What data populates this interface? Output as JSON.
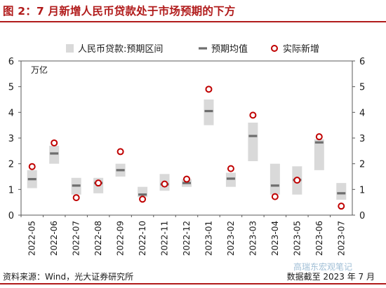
{
  "header": {
    "title": "图 2：7 月新增人民币贷款处于市场预期的下方"
  },
  "footer": {
    "source": "资料来源：Wind，光大证券研究所",
    "date_note": "数据截至 2023 年 7 月",
    "watermark": "高瑞东宏观笔记"
  },
  "colors": {
    "title": "#b11b1b",
    "range_band": "#d9d9d9",
    "mean_marker": "#6e6e6e",
    "actual_marker": "#c00000"
  },
  "chart_data": {
    "type": "range_with_markers",
    "unit_label": "万亿",
    "legend_position": "top",
    "legend": [
      "人民币贷款:预期区间",
      "预期均值",
      "实际新增"
    ],
    "categories": [
      "2022-05",
      "2022-06",
      "2022-07",
      "2022-08",
      "2022-09",
      "2022-10",
      "2022-11",
      "2022-12",
      "2023-01",
      "2023-02",
      "2023-03",
      "2023-04",
      "2023-05",
      "2023-06",
      "2023-07"
    ],
    "y_left": {
      "min": 0,
      "max": 6,
      "ticks": [
        0,
        1,
        2,
        3,
        4,
        5,
        6
      ]
    },
    "y_right": {
      "min": 0,
      "max": 6,
      "ticks": [
        0,
        1,
        2,
        3,
        4,
        5,
        6
      ]
    },
    "series": [
      {
        "name": "人民币贷款:预期区间",
        "kind": "range",
        "values": [
          [
            1.05,
            1.75
          ],
          [
            2.0,
            2.7
          ],
          [
            0.8,
            1.45
          ],
          [
            0.85,
            1.45
          ],
          [
            1.5,
            2.0
          ],
          [
            0.7,
            1.1
          ],
          [
            0.95,
            1.6
          ],
          [
            1.1,
            1.4
          ],
          [
            3.5,
            4.5
          ],
          [
            1.1,
            1.65
          ],
          [
            2.1,
            3.6
          ],
          [
            0.8,
            2.0
          ],
          [
            0.8,
            1.9
          ],
          [
            1.75,
            2.95
          ],
          [
            0.6,
            1.25
          ]
        ]
      },
      {
        "name": "预期均值",
        "kind": "mean",
        "values": [
          1.4,
          2.4,
          1.15,
          1.25,
          1.75,
          0.8,
          1.2,
          1.25,
          4.05,
          1.42,
          3.08,
          1.15,
          1.37,
          2.83,
          0.85
        ]
      },
      {
        "name": "实际新增",
        "kind": "actual",
        "values": [
          1.89,
          2.81,
          0.68,
          1.25,
          2.47,
          0.62,
          1.21,
          1.4,
          4.9,
          1.81,
          3.89,
          0.72,
          1.36,
          3.05,
          0.35
        ]
      }
    ]
  }
}
